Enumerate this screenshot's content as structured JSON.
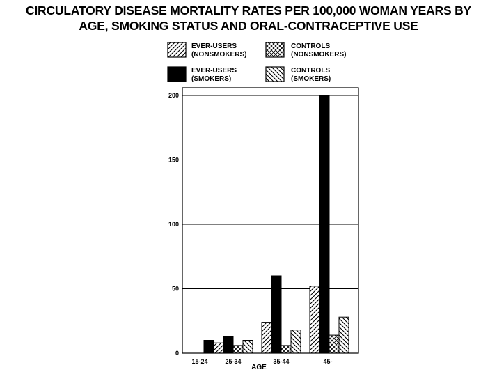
{
  "chart_data": {
    "type": "bar",
    "title_lines": [
      "CIRCULATORY DISEASE MORTALITY RATES PER 100,000 WOMAN YEARS BY",
      "AGE, SMOKING STATUS AND ORAL-CONTRACEPTIVE USE"
    ],
    "xlabel": "AGE",
    "ylabel": "",
    "ylim": [
      0,
      200
    ],
    "yticks": [
      0,
      50,
      100,
      150,
      200
    ],
    "grid": true,
    "legend_position": "top",
    "categories": [
      "15-24",
      "25-34",
      "35-44",
      "45-"
    ],
    "series": [
      {
        "name_lines": [
          "EVER-USERS",
          "(NONSMOKERS)"
        ],
        "pattern": "diag-right",
        "values": [
          0,
          8,
          24,
          52
        ]
      },
      {
        "name_lines": [
          "EVER-USERS",
          "(SMOKERS)"
        ],
        "pattern": "solid",
        "values": [
          10,
          13,
          60,
          200
        ]
      },
      {
        "name_lines": [
          "CONTROLS",
          "(NONSMOKERS)"
        ],
        "pattern": "crosshatch",
        "values": [
          0,
          6,
          6,
          14
        ]
      },
      {
        "name_lines": [
          "CONTROLS",
          "(SMOKERS)"
        ],
        "pattern": "diag-left",
        "values": [
          0,
          10,
          18,
          28
        ]
      }
    ],
    "legend_order": [
      0,
      2,
      1,
      3
    ]
  }
}
